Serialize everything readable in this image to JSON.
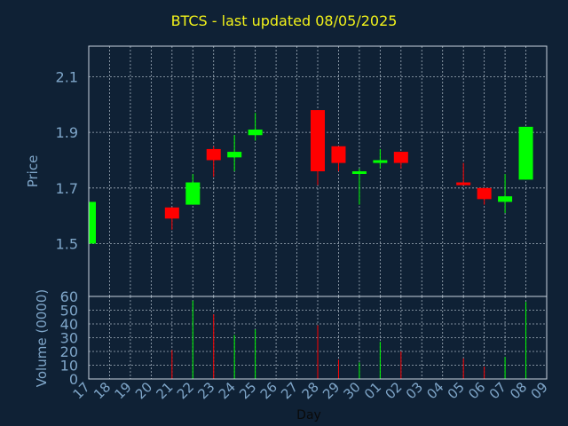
{
  "chart_data": {
    "type": "candlestick",
    "title": "BTCS - last updated 08/05/2025",
    "colors": {
      "background": "#0f2135",
      "up": "#00ff00",
      "down": "#ff0000",
      "text": "#7fa6c9",
      "title": "#f2f21a",
      "frame": "#c8d4e0",
      "grid": "#c8d4e0"
    },
    "price_panel": {
      "ylabel": "Price",
      "ylim": [
        1.31,
        2.21
      ],
      "yticks": [
        1.5,
        1.7,
        1.9,
        2.1
      ],
      "ytick_labels": [
        "1.5",
        "1.7",
        "1.9",
        "2.1"
      ]
    },
    "volume_panel": {
      "ylabel": "Volume (0000)",
      "ylim": [
        0,
        60
      ],
      "yticks": [
        0,
        10,
        20,
        30,
        40,
        50,
        60
      ],
      "ytick_labels": [
        "0",
        "10",
        "20",
        "30",
        "40",
        "50",
        "60"
      ]
    },
    "xlabel": "Day",
    "x_labels": [
      "17",
      "18",
      "19",
      "20",
      "21",
      "22",
      "23",
      "24",
      "25",
      "26",
      "27",
      "28",
      "29",
      "30",
      "01",
      "02",
      "03",
      "04",
      "05",
      "06",
      "07",
      "08",
      "09"
    ],
    "candles": [
      {
        "day": "17",
        "open": 1.5,
        "high": 1.65,
        "low": 1.5,
        "close": 1.65,
        "volume": 0
      },
      {
        "day": "21",
        "open": 1.63,
        "high": 1.63,
        "low": 1.55,
        "close": 1.59,
        "volume": 21
      },
      {
        "day": "22",
        "open": 1.64,
        "high": 1.75,
        "low": 1.64,
        "close": 1.72,
        "volume": 57
      },
      {
        "day": "23",
        "open": 1.84,
        "high": 1.85,
        "low": 1.74,
        "close": 1.8,
        "volume": 47
      },
      {
        "day": "24",
        "open": 1.81,
        "high": 1.89,
        "low": 1.76,
        "close": 1.83,
        "volume": 32
      },
      {
        "day": "25",
        "open": 1.89,
        "high": 1.97,
        "low": 1.87,
        "close": 1.91,
        "volume": 36
      },
      {
        "day": "28",
        "open": 1.98,
        "high": 1.98,
        "low": 1.71,
        "close": 1.76,
        "volume": 39
      },
      {
        "day": "29",
        "open": 1.85,
        "high": 1.85,
        "low": 1.76,
        "close": 1.79,
        "volume": 14
      },
      {
        "day": "30",
        "open": 1.76,
        "high": 1.77,
        "low": 1.64,
        "close": 1.76,
        "volume": 12
      },
      {
        "day": "01",
        "open": 1.79,
        "high": 1.84,
        "low": 1.77,
        "close": 1.8,
        "volume": 27
      },
      {
        "day": "02",
        "open": 1.83,
        "high": 1.83,
        "low": 1.77,
        "close": 1.79,
        "volume": 20
      },
      {
        "day": "05",
        "open": 1.72,
        "high": 1.79,
        "low": 1.71,
        "close": 1.71,
        "volume": 15
      },
      {
        "day": "06",
        "open": 1.7,
        "high": 1.7,
        "low": 1.64,
        "close": 1.66,
        "volume": 9
      },
      {
        "day": "07",
        "open": 1.65,
        "high": 1.75,
        "low": 1.61,
        "close": 1.67,
        "volume": 16
      },
      {
        "day": "08",
        "open": 1.73,
        "high": 1.92,
        "low": 1.73,
        "close": 1.92,
        "volume": 56
      }
    ]
  }
}
